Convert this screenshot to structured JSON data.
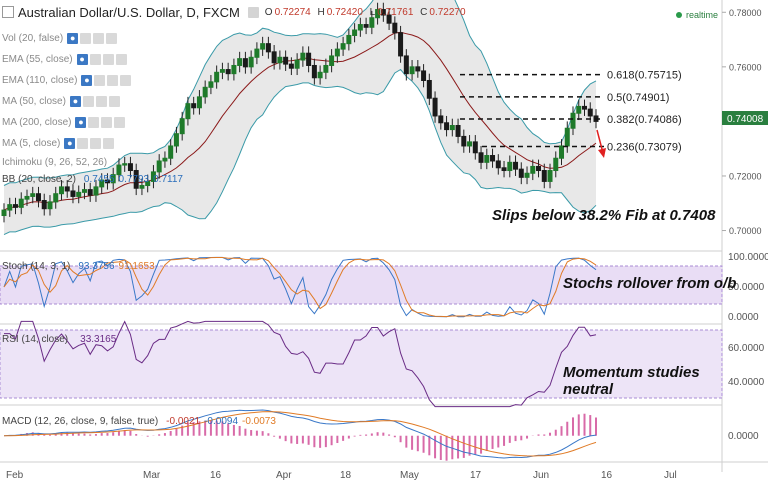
{
  "header": {
    "title": "Australian Dollar/U.S. Dollar, D, FXCM",
    "ohlc": [
      {
        "k": "O",
        "v": "0.72274"
      },
      {
        "k": "H",
        "v": "0.72420"
      },
      {
        "k": "L",
        "v": "0.71761"
      },
      {
        "k": "C",
        "v": "0.72270"
      }
    ],
    "realtime": "realtime"
  },
  "indicators": [
    {
      "label": "Vol (20, false)"
    },
    {
      "label": "EMA (55, close)"
    },
    {
      "label": "EMA (110, close)"
    },
    {
      "label": "MA (50, close)"
    },
    {
      "label": "MA (200, close)"
    },
    {
      "label": "MA (5, close)"
    },
    {
      "label": "Ichimoku (9, 26, 52, 26)"
    },
    {
      "label": "BB (20, close, 2)",
      "values": [
        "0.7455",
        "0.7793",
        "0.7117"
      ]
    }
  ],
  "price_label": "0.74008",
  "fib_levels": [
    {
      "label": "0.618(0.75715)",
      "value": 0.75715
    },
    {
      "label": "0.5(0.74901)",
      "value": 0.74901
    },
    {
      "label": "0.382(0.74086)",
      "value": 0.74086
    },
    {
      "label": "0.236(0.73079)",
      "value": 0.73079
    }
  ],
  "annotations": {
    "fib": "Slips below 38.2% Fib at 0.7408",
    "stoch": "Stochs rollover from o/b",
    "rsi": "Momentum studies neutral"
  },
  "panes": {
    "stoch": {
      "label": "Stoch (14, 3, 1)",
      "values": [
        "93.3756",
        "91.1653"
      ],
      "ticks": [
        "100.0000",
        "50.0000",
        "0.0000"
      ]
    },
    "rsi": {
      "label": "RSI (14, close)",
      "value": "33.3165",
      "ticks": [
        "60.0000",
        "40.0000"
      ]
    },
    "macd": {
      "label": "MACD (12, 26, close, 9, false, true)",
      "values": [
        "-0.0021",
        "-0.0094",
        "-0.0073"
      ],
      "ticks": [
        "0.0000"
      ]
    }
  },
  "x_axis": [
    "Feb",
    "Mar",
    "16",
    "Apr",
    "18",
    "May",
    "17",
    "Jun",
    "16",
    "Jul"
  ],
  "chart_data": {
    "type": "candlestick",
    "title": "Australian Dollar/U.S. Dollar, D, FXCM",
    "y_ticks": [
      0.78,
      0.76,
      0.74,
      0.72,
      0.7
    ],
    "ylim": [
      0.6925,
      0.7845
    ],
    "x_ticks": [
      "Feb",
      "Mar",
      "16",
      "Apr",
      "18",
      "May",
      "17",
      "Jun",
      "16",
      "Jul"
    ],
    "closes": [
      0.7075,
      0.7095,
      0.7085,
      0.7115,
      0.7125,
      0.7135,
      0.711,
      0.708,
      0.7105,
      0.7135,
      0.716,
      0.7145,
      0.7125,
      0.714,
      0.715,
      0.713,
      0.716,
      0.7185,
      0.7175,
      0.7205,
      0.724,
      0.7245,
      0.722,
      0.7155,
      0.7165,
      0.718,
      0.7215,
      0.7255,
      0.7265,
      0.731,
      0.7355,
      0.741,
      0.7465,
      0.745,
      0.749,
      0.7525,
      0.7545,
      0.758,
      0.759,
      0.7575,
      0.7605,
      0.763,
      0.76,
      0.7635,
      0.7665,
      0.7685,
      0.7655,
      0.7615,
      0.7635,
      0.761,
      0.7595,
      0.7625,
      0.765,
      0.7605,
      0.756,
      0.758,
      0.7605,
      0.764,
      0.7665,
      0.7685,
      0.7715,
      0.7735,
      0.7755,
      0.7745,
      0.778,
      0.781,
      0.779,
      0.776,
      0.7725,
      0.764,
      0.7575,
      0.76,
      0.7585,
      0.755,
      0.7485,
      0.742,
      0.7395,
      0.737,
      0.7385,
      0.7345,
      0.731,
      0.7325,
      0.7285,
      0.725,
      0.7275,
      0.7255,
      0.723,
      0.722,
      0.725,
      0.7225,
      0.7195,
      0.721,
      0.7235,
      0.722,
      0.718,
      0.722,
      0.7265,
      0.731,
      0.7375,
      0.743,
      0.7455,
      0.7445,
      0.742,
      0.74
    ],
    "bb": {
      "upper": "0.7793",
      "middle": "0.7455",
      "lower": "0.7117"
    },
    "fib": [
      {
        "level": "0.618",
        "value": 0.75715
      },
      {
        "level": "0.5",
        "value": 0.74901
      },
      {
        "level": "0.382",
        "value": 0.74086
      },
      {
        "level": "0.236",
        "value": 0.73079
      }
    ],
    "last_price": 0.74008,
    "stoch": {
      "k": 93.3756,
      "d": 91.1653,
      "ylim": [
        0,
        100
      ]
    },
    "rsi": {
      "value": 33.3165,
      "ylim": [
        25,
        75
      ]
    },
    "macd": {
      "values": [
        -0.0021,
        -0.0094,
        -0.0073
      ]
    }
  }
}
